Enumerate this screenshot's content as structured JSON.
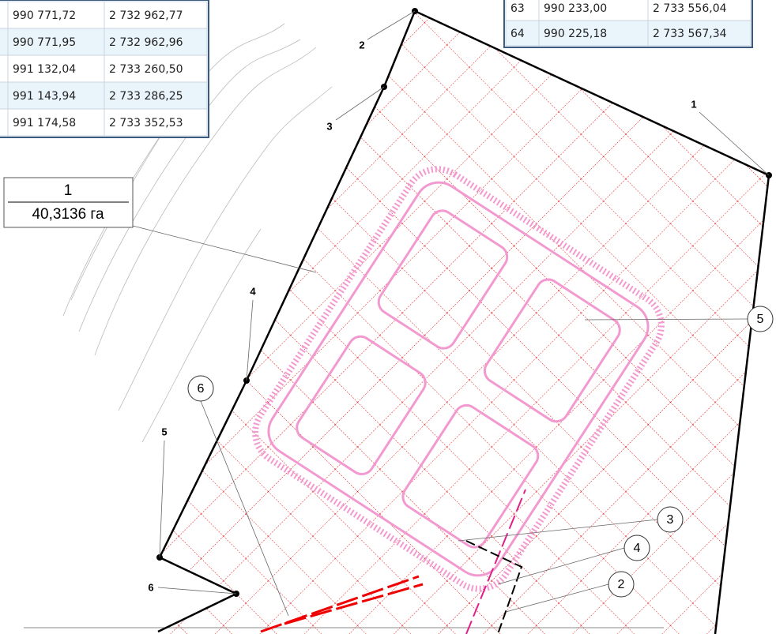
{
  "table_left": {
    "rows": [
      [
        "990 771,72",
        "2 732 962,77"
      ],
      [
        "990 771,95",
        "2 732 962,96"
      ],
      [
        "991 132,04",
        "2 733 260,50"
      ],
      [
        "991 143,94",
        "2 733 286,25"
      ],
      [
        "991 174,58",
        "2 733 352,53"
      ]
    ]
  },
  "table_right": {
    "rows": [
      [
        "63",
        "990 233,00",
        "2 733 556,04"
      ],
      [
        "64",
        "990 225,18",
        "2 733 567,34"
      ]
    ]
  },
  "plot": {
    "number": "1",
    "area": "40,3136 га"
  },
  "points": [
    {
      "label": "1"
    },
    {
      "label": "2"
    },
    {
      "label": "3"
    },
    {
      "label": "4"
    },
    {
      "label": "5"
    },
    {
      "label": "6"
    }
  ],
  "callouts": [
    {
      "label": "5"
    },
    {
      "label": "6"
    },
    {
      "label": "3"
    },
    {
      "label": "4"
    },
    {
      "label": "2"
    }
  ]
}
